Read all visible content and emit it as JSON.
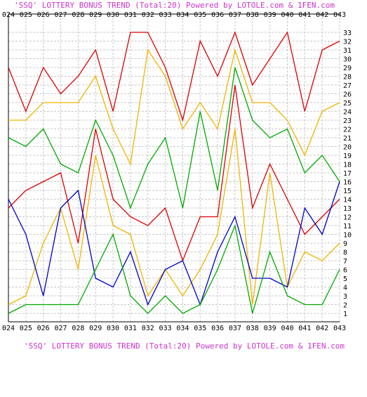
{
  "chart_data": {
    "type": "line",
    "title": "'SSQ' LOTTERY BONUS TREND (Total:20)  Powered by LOTOLE.com & 1FEN.com",
    "bottom_caption": "'SSQ' LOTTERY BONUS TREND (Total:20)  Powered by LOTOLE.com & 1FEN.com",
    "xlabel": "",
    "ylabel": "",
    "categories": [
      "024",
      "025",
      "026",
      "027",
      "028",
      "029",
      "030",
      "031",
      "032",
      "033",
      "034",
      "035",
      "036",
      "037",
      "038",
      "039",
      "040",
      "041",
      "042",
      "043"
    ],
    "ylim": [
      1,
      33
    ],
    "y_ticks": [
      1,
      2,
      3,
      4,
      5,
      6,
      7,
      8,
      9,
      10,
      11,
      12,
      13,
      14,
      15,
      16,
      17,
      18,
      19,
      20,
      21,
      22,
      23,
      24,
      25,
      26,
      27,
      28,
      29,
      30,
      31,
      32,
      33
    ],
    "grid": true,
    "series": [
      {
        "color": "#dd0000",
        "values": [
          29,
          24,
          29,
          26,
          28,
          31,
          24,
          33,
          33,
          29,
          23,
          32,
          28,
          33,
          27,
          30,
          33,
          24,
          31,
          32
        ]
      },
      {
        "color": "#f0b400",
        "values": [
          23,
          23,
          25,
          25,
          25,
          28,
          22,
          18,
          31,
          28,
          22,
          25,
          22,
          31,
          25,
          25,
          23,
          19,
          24,
          25
        ]
      },
      {
        "color": "#00aa00",
        "values": [
          21,
          20,
          22,
          18,
          17,
          23,
          19,
          13,
          18,
          21,
          13,
          24,
          15,
          29,
          23,
          21,
          22,
          17,
          19,
          16
        ]
      },
      {
        "color": "#dd0000",
        "values": [
          13,
          15,
          16,
          17,
          9,
          22,
          14,
          12,
          11,
          13,
          7,
          12,
          12,
          27,
          13,
          18,
          14,
          10,
          12,
          14
        ]
      },
      {
        "color": "#f0b400",
        "values": [
          2,
          3,
          9,
          13,
          6,
          19,
          11,
          10,
          3,
          6,
          3,
          6,
          10,
          22,
          2,
          17,
          4,
          8,
          7,
          9
        ]
      },
      {
        "color": "#0000cc",
        "values": [
          14,
          10,
          3,
          13,
          15,
          5,
          4,
          8,
          2,
          6,
          7,
          2,
          8,
          12,
          5,
          5,
          4,
          13,
          10,
          16
        ]
      },
      {
        "color": "#00aa00",
        "values": [
          1,
          2,
          2,
          2,
          2,
          6,
          10,
          3,
          1,
          3,
          1,
          2,
          6,
          11,
          1,
          8,
          3,
          2,
          2,
          6
        ]
      }
    ]
  }
}
